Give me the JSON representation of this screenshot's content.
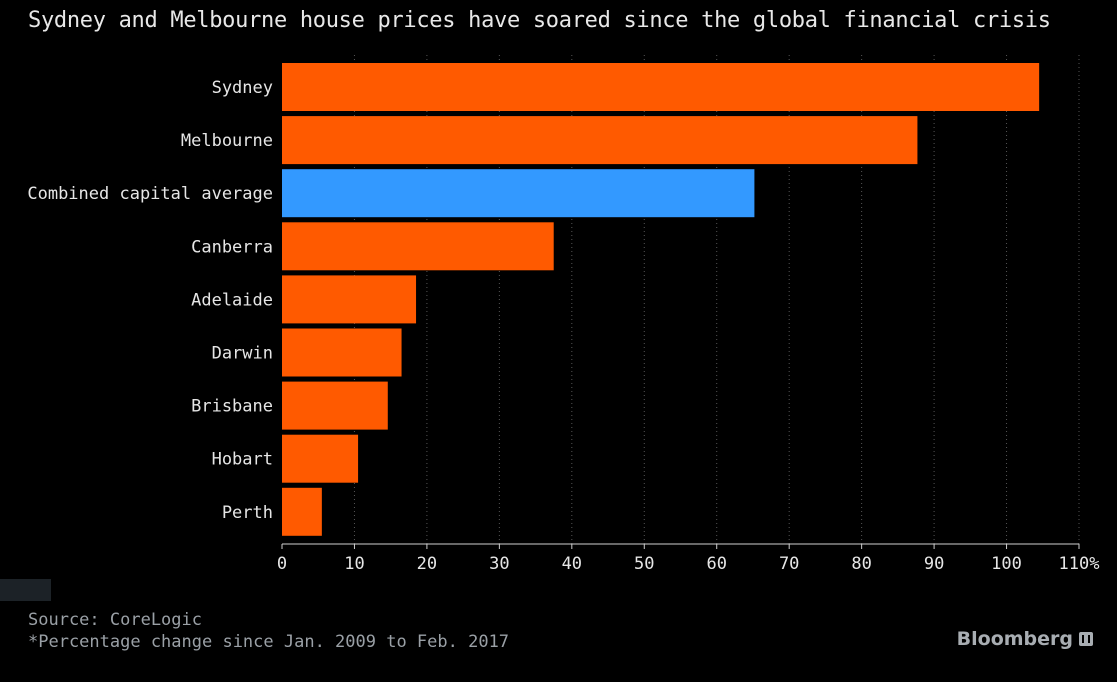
{
  "subtitle": "Sydney and Melbourne house prices have soared since the global financial crisis",
  "source": "Source: CoreLogic",
  "note": "*Percentage change since Jan. 2009 to Feb. 2017",
  "brand": "Bloomberg",
  "colors": {
    "highlight": "#3399ff",
    "default": "#ff5a00",
    "background": "#000000"
  },
  "chart_data": {
    "type": "bar",
    "orientation": "horizontal",
    "categories": [
      "Sydney",
      "Melbourne",
      "Combined capital average",
      "Canberra",
      "Adelaide",
      "Darwin",
      "Brisbane",
      "Hobart",
      "Perth"
    ],
    "values": [
      104.5,
      87.7,
      65.2,
      37.5,
      18.5,
      16.5,
      14.6,
      10.5,
      5.5
    ],
    "highlighted": [
      "Combined capital average"
    ],
    "xlim": [
      0,
      110
    ],
    "xticks": [
      0,
      10,
      20,
      30,
      40,
      50,
      60,
      70,
      80,
      90,
      100,
      110
    ],
    "xtick_labels": [
      "0",
      "10",
      "20",
      "30",
      "40",
      "50",
      "60",
      "70",
      "80",
      "90",
      "100",
      "110%"
    ],
    "grid": "vertical dotted"
  }
}
